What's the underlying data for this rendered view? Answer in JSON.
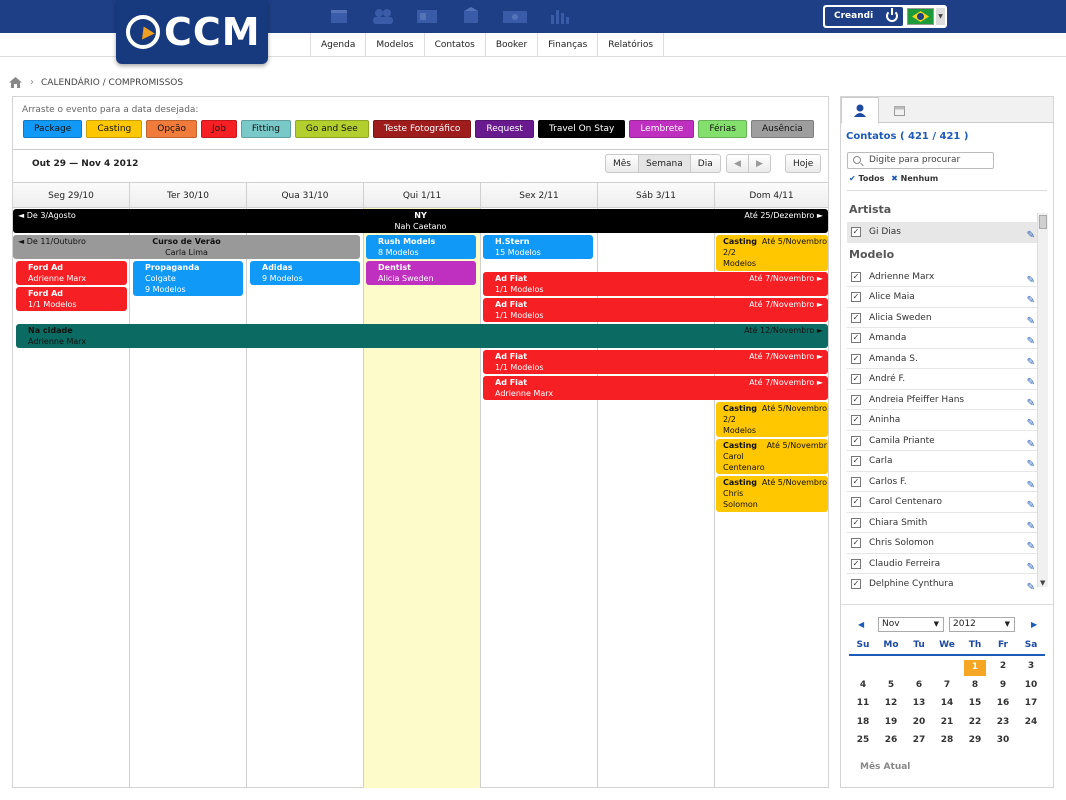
{
  "app": {
    "logo_text": "CCM",
    "user_button": "Creandi",
    "nav": [
      "Agenda",
      "Modelos",
      "Contatos",
      "Booker",
      "Finanças",
      "Relatórios"
    ]
  },
  "breadcrumb": {
    "path": "CALENDÁRIO / COMPROMISSOS"
  },
  "calendar": {
    "drag_hint": "Arraste o evento para a data desejada:",
    "event_types": [
      {
        "label": "Package",
        "color": "#1199f7"
      },
      {
        "label": "Casting",
        "color": "#ffc700"
      },
      {
        "label": "Opção",
        "color": "#f07b3a"
      },
      {
        "label": "Job",
        "color": "#f51f24"
      },
      {
        "label": "Fitting",
        "color": "#79c9c8"
      },
      {
        "label": "Go and See",
        "color": "#b3cf2e"
      },
      {
        "label": "Teste Fotográfico",
        "color": "#9e1c1c"
      },
      {
        "label": "Request",
        "color": "#6a1a8f"
      },
      {
        "label": "Travel On Stay",
        "color": "#000000"
      },
      {
        "label": "Lembrete",
        "color": "#c030c0"
      },
      {
        "label": "Férias",
        "color": "#83e06d"
      },
      {
        "label": "Ausência",
        "color": "#9e9e9e"
      }
    ],
    "date_range": "Out 29 — Nov 4 2012",
    "views": [
      "Mês",
      "Semana",
      "Dia"
    ],
    "active_view": "Semana",
    "today_label": "Hoje",
    "days": [
      "Seg 29/10",
      "Ter 30/10",
      "Qua 31/10",
      "Qui 1/11",
      "Sex 2/11",
      "Sáb 3/11",
      "Dom 4/11"
    ],
    "today_index": 3,
    "events": {
      "ny": {
        "left": "◄  De 3/Agosto",
        "title": "NY",
        "sub": "Nah Caetano",
        "right": "Até 25/Dezembro ►"
      },
      "curso": {
        "left": "◄  De 11/Outubro",
        "title": "Curso de Verão",
        "sub": "Carla Lima"
      },
      "rush": {
        "title": "Rush Models",
        "sub": "8 Modelos"
      },
      "hstern": {
        "title": "H.Stern",
        "sub": "15 Modelos"
      },
      "casting1": {
        "title": "Casting",
        "right": "Até 5/Novembro",
        "l2": "2/2",
        "l3": "Modelos"
      },
      "ford1": {
        "title": "Ford Ad",
        "sub": "Adrienne Marx"
      },
      "ford2": {
        "title": "Ford Ad",
        "sub": "1/1 Modelos"
      },
      "propaganda": {
        "title": "Propaganda",
        "l2": "Colgate",
        "l3": "9 Modelos"
      },
      "adidas": {
        "title": "Adidas",
        "sub": "9 Modelos"
      },
      "dentist": {
        "title": "Dentist",
        "sub": "Alicia Sweden"
      },
      "adfiat1": {
        "title": "Ad Fiat",
        "sub": "1/1 Modelos",
        "right": "Até 7/Novembro ►"
      },
      "adfiat2": {
        "title": "Ad Fiat",
        "sub": "1/1 Modelos",
        "right": "Até 7/Novembro ►"
      },
      "nacidade": {
        "title": "Na cidade",
        "sub": "Adrienne Marx",
        "right": "Até 12/Novembro ►"
      },
      "adfiat3": {
        "title": "Ad Fiat",
        "sub": "1/1 Modelos",
        "right": "Até 7/Novembro ►"
      },
      "adfiat4": {
        "title": "Ad Fiat",
        "sub": "Adrienne Marx",
        "right": "Até 7/Novembro ►"
      },
      "casting2": {
        "title": "Casting",
        "right": "Até 5/Novembro",
        "l2": "2/2",
        "l3": "Modelos"
      },
      "casting3": {
        "title": "Casting",
        "right": "Até 5/Novembr",
        "l2": "Carol",
        "l3": "Centenaro"
      },
      "casting4": {
        "title": "Casting",
        "right": "Até 5/Novembro",
        "l2": "Chris",
        "l3": "Solomon"
      }
    }
  },
  "sidebar": {
    "contacts_title": "Contatos ( 421 / 421 )",
    "search_placeholder": "Digite para procurar",
    "select_all": "Todos",
    "select_none": "Nenhum",
    "groups": [
      {
        "title": "Artista",
        "items": [
          "Gi Dias"
        ]
      },
      {
        "title": "Modelo",
        "items": [
          "Adrienne Marx",
          "Alice Maia",
          "Alicia Sweden",
          "Amanda",
          "Amanda S.",
          "André F.",
          "Andreia Pfeiffer Hans",
          "Aninha",
          "Camila Priante",
          "Carla",
          "Carlos F.",
          "Carol Centenaro",
          "Chiara Smith",
          "Chris Solomon",
          "Claudio Ferreira",
          "Delphine Cynthura"
        ]
      }
    ],
    "mini_calendar": {
      "month": "Nov",
      "year": "2012",
      "weekdays": [
        "Su",
        "Mo",
        "Tu",
        "We",
        "Th",
        "Fr",
        "Sa"
      ],
      "weeks": [
        [
          "",
          "",
          "",
          "",
          "1",
          "2",
          "3"
        ],
        [
          "4",
          "5",
          "6",
          "7",
          "8",
          "9",
          "10"
        ],
        [
          "11",
          "12",
          "13",
          "14",
          "15",
          "16",
          "17"
        ],
        [
          "18",
          "19",
          "20",
          "21",
          "22",
          "23",
          "24"
        ],
        [
          "25",
          "26",
          "27",
          "28",
          "29",
          "30",
          ""
        ]
      ],
      "today": "1",
      "current_month_label": "Mês Atual"
    }
  }
}
